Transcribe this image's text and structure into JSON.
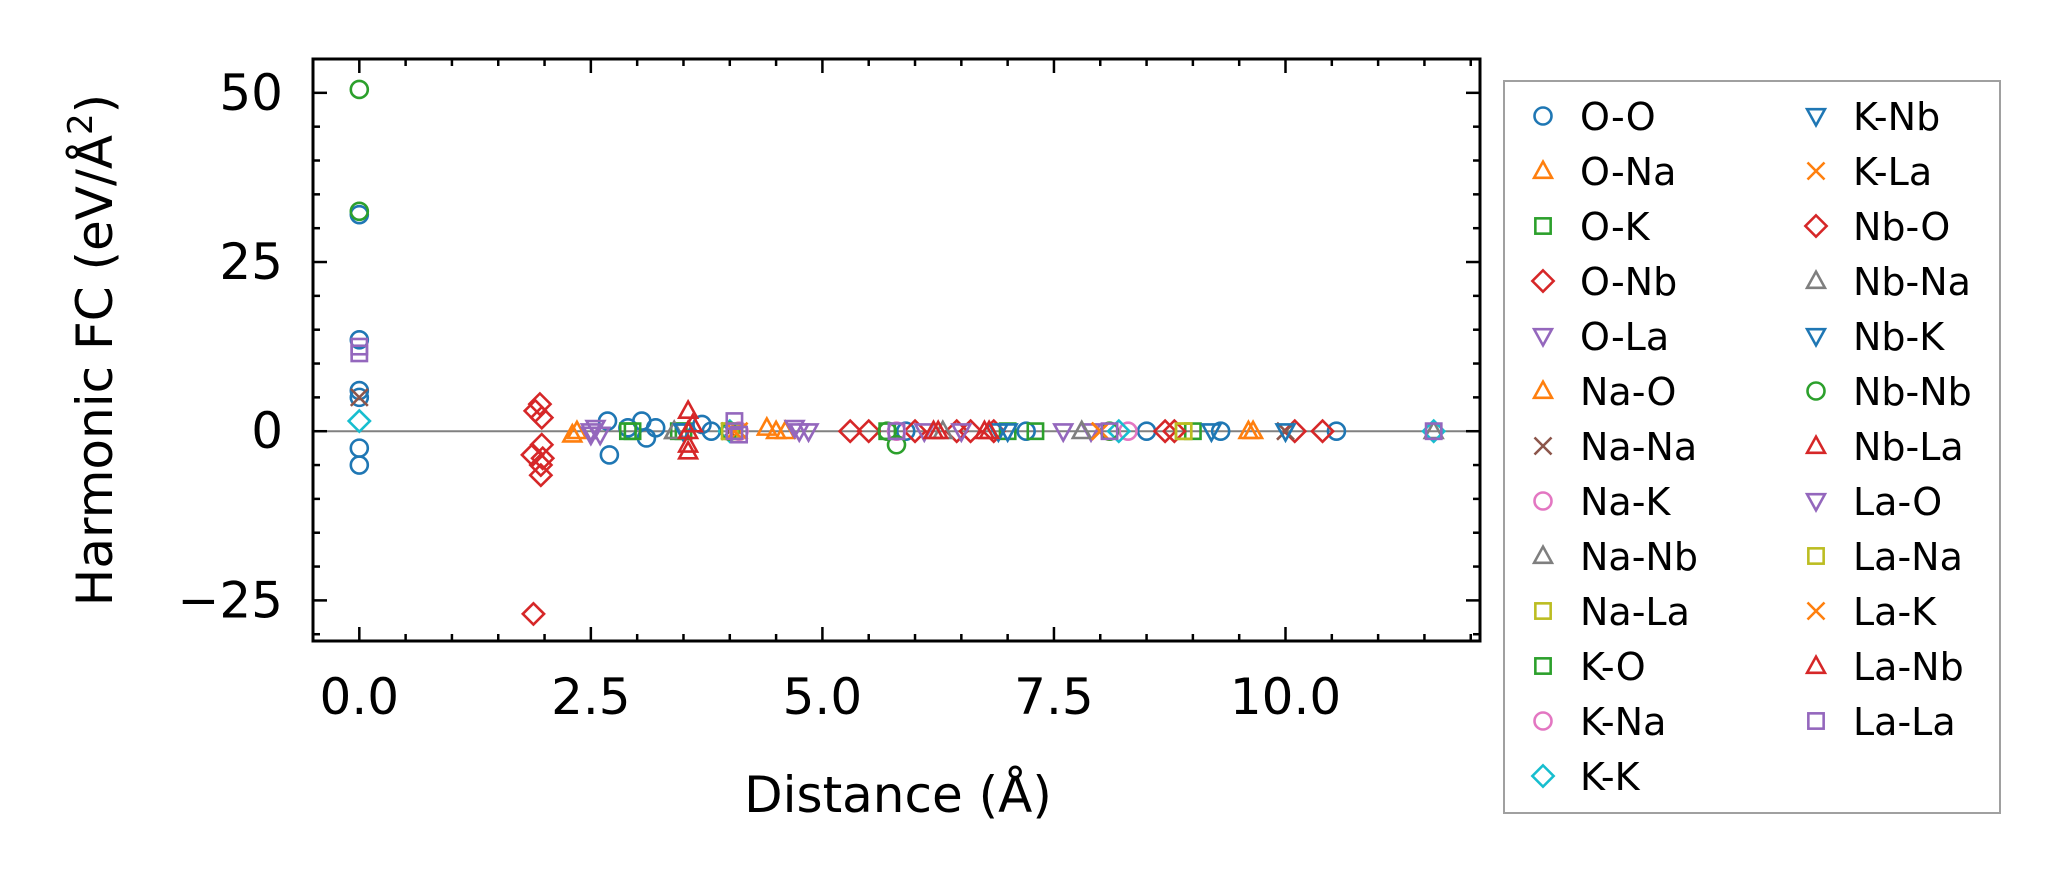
{
  "chart_data": {
    "type": "scatter",
    "xlabel": "Distance (Å)",
    "ylabel_main": "Harmonic FC (eV/Å",
    "ylabel_sup": "2",
    "ylabel_close": ")",
    "xlim": [
      -0.5,
      12.1
    ],
    "ylim": [
      -31,
      55
    ],
    "x_ticks": [
      0.0,
      2.5,
      5.0,
      7.5,
      10.0
    ],
    "x_tick_labels": [
      "0.0",
      "2.5",
      "5.0",
      "7.5",
      "10.0"
    ],
    "y_ticks": [
      -25,
      0,
      25,
      50
    ],
    "y_tick_labels": [
      "−25",
      "0",
      "25",
      "50"
    ],
    "reference_line_y": 0,
    "legend_position": "right-outside",
    "series": [
      {
        "name": "O-O",
        "marker": "circle",
        "color": "#1f77b4",
        "points": [
          [
            0,
            32
          ],
          [
            0,
            13.5
          ],
          [
            0,
            6
          ],
          [
            0,
            5
          ],
          [
            0,
            -2.5
          ],
          [
            0,
            -5
          ],
          [
            2.68,
            1.5
          ],
          [
            2.7,
            -3.5
          ],
          [
            2.9,
            0.5
          ],
          [
            3.05,
            1.5
          ],
          [
            3.1,
            -1
          ],
          [
            3.2,
            0.5
          ],
          [
            3.7,
            1
          ],
          [
            3.8,
            0
          ],
          [
            5.9,
            0
          ],
          [
            7.2,
            0
          ],
          [
            8.5,
            0
          ],
          [
            9.3,
            0
          ],
          [
            10.55,
            0
          ]
        ]
      },
      {
        "name": "O-Na",
        "marker": "triangle-up",
        "color": "#ff7f0e",
        "points": [
          [
            2.3,
            -0.5
          ],
          [
            4.4,
            0.5
          ],
          [
            4.6,
            0
          ],
          [
            9.65,
            0
          ]
        ]
      },
      {
        "name": "O-K",
        "marker": "square",
        "color": "#2ca02c",
        "points": [
          [
            2.95,
            0
          ],
          [
            3.5,
            0
          ],
          [
            5.7,
            0
          ],
          [
            7.3,
            0
          ],
          [
            9.0,
            0
          ]
        ]
      },
      {
        "name": "O-Nb",
        "marker": "diamond",
        "color": "#d62728",
        "points": [
          [
            1.88,
            -27
          ],
          [
            1.95,
            4
          ],
          [
            1.97,
            2
          ],
          [
            1.97,
            -2
          ],
          [
            1.96,
            -5
          ],
          [
            1.96,
            -6.5
          ],
          [
            1.87,
            -3.5
          ],
          [
            5.3,
            0
          ],
          [
            6.0,
            0
          ],
          [
            6.45,
            0
          ],
          [
            6.85,
            0
          ],
          [
            8.7,
            0
          ],
          [
            10.1,
            0
          ],
          [
            10.4,
            0
          ]
        ]
      },
      {
        "name": "O-La",
        "marker": "triangle-down",
        "color": "#9467bd",
        "points": [
          [
            2.5,
            0
          ],
          [
            2.6,
            -0.5
          ],
          [
            4.7,
            0.5
          ],
          [
            4.85,
            0
          ],
          [
            6.1,
            0
          ],
          [
            7.9,
            0
          ]
        ]
      },
      {
        "name": "Na-O",
        "marker": "triangle-up",
        "color": "#ff7f0e",
        "points": [
          [
            2.35,
            0
          ],
          [
            4.5,
            0
          ],
          [
            9.6,
            0
          ]
        ]
      },
      {
        "name": "Na-Na",
        "marker": "x",
        "color": "#8c564b",
        "points": [
          [
            0,
            5
          ],
          [
            4.0,
            0
          ],
          [
            10.0,
            0
          ]
        ]
      },
      {
        "name": "Na-K",
        "marker": "circle",
        "color": "#e377c2",
        "points": [
          [
            4.0,
            0
          ],
          [
            5.8,
            0
          ]
        ]
      },
      {
        "name": "Na-Nb",
        "marker": "triangle-up",
        "color": "#7f7f7f",
        "points": [
          [
            3.4,
            0
          ],
          [
            6.3,
            0
          ],
          [
            11.6,
            0
          ]
        ]
      },
      {
        "name": "Na-La",
        "marker": "square",
        "color": "#bcbd22",
        "points": [
          [
            4.0,
            0
          ],
          [
            8.9,
            0
          ]
        ]
      },
      {
        "name": "K-O",
        "marker": "square",
        "color": "#2ca02c",
        "points": [
          [
            2.9,
            0
          ],
          [
            3.45,
            0
          ],
          [
            7.0,
            0
          ]
        ]
      },
      {
        "name": "K-Na",
        "marker": "circle",
        "color": "#e377c2",
        "points": [
          [
            4.1,
            0
          ],
          [
            8.3,
            0
          ]
        ]
      },
      {
        "name": "K-K",
        "marker": "diamond",
        "color": "#17becf",
        "points": [
          [
            0,
            1.5
          ],
          [
            4.0,
            0
          ],
          [
            8.2,
            0
          ],
          [
            11.6,
            0
          ]
        ]
      },
      {
        "name": "K-Nb",
        "marker": "triangle-down",
        "color": "#1f77b4",
        "points": [
          [
            3.5,
            0
          ],
          [
            7.0,
            0
          ],
          [
            9.2,
            0
          ]
        ]
      },
      {
        "name": "K-La",
        "marker": "x",
        "color": "#ff7f0e",
        "points": [
          [
            4.1,
            0
          ],
          [
            8.0,
            0
          ]
        ]
      },
      {
        "name": "Nb-O",
        "marker": "diamond",
        "color": "#d62728",
        "points": [
          [
            1.9,
            3
          ],
          [
            1.98,
            -4
          ],
          [
            5.5,
            0
          ],
          [
            6.6,
            0
          ],
          [
            8.8,
            0
          ]
        ]
      },
      {
        "name": "Nb-Na",
        "marker": "triangle-up",
        "color": "#7f7f7f",
        "points": [
          [
            3.4,
            0
          ],
          [
            7.8,
            0
          ]
        ]
      },
      {
        "name": "Nb-K",
        "marker": "triangle-down",
        "color": "#1f77b4",
        "points": [
          [
            3.5,
            0
          ],
          [
            6.9,
            0
          ],
          [
            10.0,
            0
          ]
        ]
      },
      {
        "name": "Nb-Nb",
        "marker": "circle",
        "color": "#2ca02c",
        "points": [
          [
            0,
            50.5
          ],
          [
            0,
            32.5
          ],
          [
            4.0,
            0
          ],
          [
            5.8,
            -2
          ],
          [
            5.7,
            0
          ],
          [
            8.1,
            0
          ]
        ]
      },
      {
        "name": "Nb-La",
        "marker": "triangle-up",
        "color": "#d62728",
        "points": [
          [
            3.55,
            3
          ],
          [
            3.55,
            0
          ],
          [
            3.55,
            -2
          ],
          [
            3.55,
            -3
          ],
          [
            6.2,
            0
          ],
          [
            6.8,
            0
          ]
        ]
      },
      {
        "name": "La-O",
        "marker": "triangle-down",
        "color": "#9467bd",
        "points": [
          [
            2.5,
            -0.5
          ],
          [
            2.55,
            0.5
          ],
          [
            4.75,
            0
          ],
          [
            6.5,
            0
          ],
          [
            7.6,
            0
          ]
        ]
      },
      {
        "name": "La-Na",
        "marker": "square",
        "color": "#bcbd22",
        "points": [
          [
            4.0,
            0
          ],
          [
            8.9,
            0
          ]
        ]
      },
      {
        "name": "La-K",
        "marker": "x",
        "color": "#ff7f0e",
        "points": [
          [
            4.05,
            0
          ],
          [
            8.0,
            0
          ]
        ]
      },
      {
        "name": "La-Nb",
        "marker": "triangle-up",
        "color": "#d62728",
        "points": [
          [
            3.6,
            1
          ],
          [
            6.25,
            0
          ],
          [
            6.75,
            0
          ]
        ]
      },
      {
        "name": "La-La",
        "marker": "square",
        "color": "#9467bd",
        "points": [
          [
            0,
            12.5
          ],
          [
            0,
            11.5
          ],
          [
            4.05,
            1.5
          ],
          [
            4.05,
            0
          ],
          [
            4.1,
            -0.5
          ],
          [
            5.8,
            0
          ],
          [
            8.1,
            0
          ],
          [
            11.6,
            0
          ]
        ]
      }
    ]
  }
}
